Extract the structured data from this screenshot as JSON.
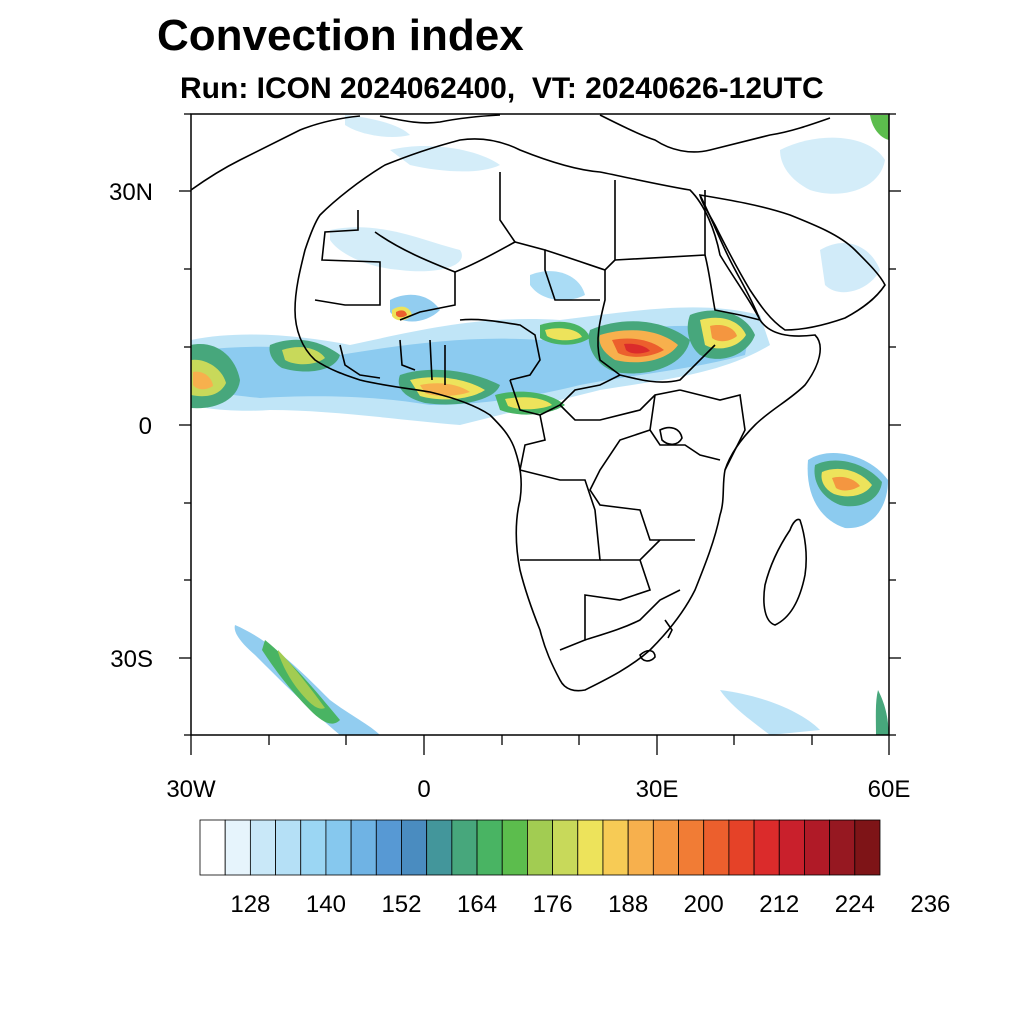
{
  "title": "Convection index",
  "subtitle": "Run: ICON 2024062400,  VT: 20240626-12UTC",
  "axes": {
    "lat_labels": [
      "30N",
      "0",
      "30S"
    ],
    "lon_labels": [
      "30W",
      "0",
      "30E",
      "60E"
    ]
  },
  "colorbar": {
    "labels": [
      "128",
      "140",
      "152",
      "164",
      "176",
      "188",
      "200",
      "212",
      "224",
      "236"
    ],
    "colors": [
      "#ffffff",
      "#e6f4fc",
      "#c9e8f8",
      "#b5e0f6",
      "#9bd6f3",
      "#86c8ee",
      "#6fb3e4",
      "#5799d4",
      "#4a8cc0",
      "#43969b",
      "#47a77c",
      "#49b463",
      "#5cbd4d",
      "#a2cc52",
      "#c8d95a",
      "#ede35b",
      "#f7cb55",
      "#f7b04d",
      "#f49640",
      "#f17c35",
      "#ec5f2d",
      "#e54228",
      "#db2b2b",
      "#c9202c",
      "#b01a27",
      "#961821",
      "#7e1417"
    ]
  }
}
